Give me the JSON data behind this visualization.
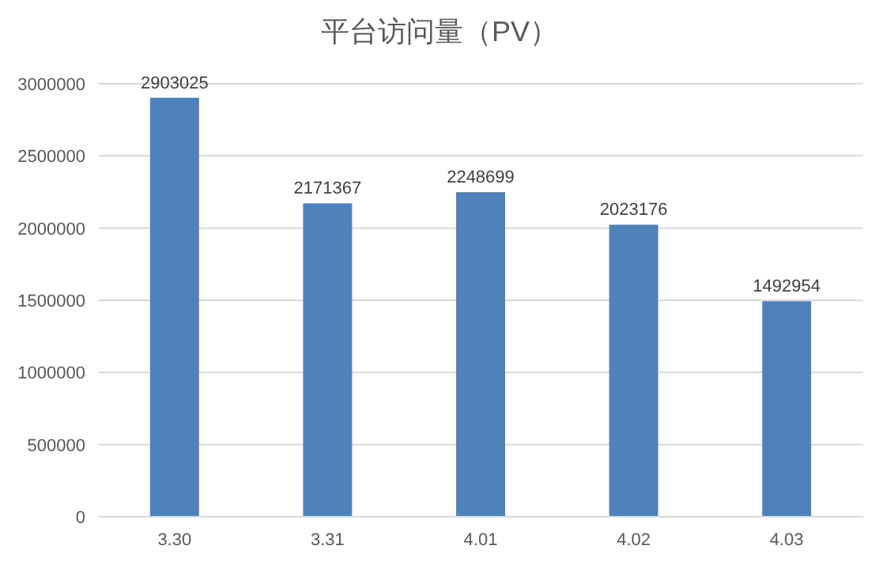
{
  "chart_data": {
    "type": "bar",
    "title": "平台访问量（PV）",
    "categories": [
      "3.30",
      "3.31",
      "4.01",
      "4.02",
      "4.03"
    ],
    "values": [
      2903025,
      2171367,
      2248699,
      2023176,
      1492954
    ],
    "color": "#4f81bd",
    "ylim": [
      0,
      3000000
    ],
    "yticks": [
      0,
      500000,
      1000000,
      1500000,
      2000000,
      2500000,
      3000000
    ],
    "grid": "y",
    "data_labels": true
  }
}
